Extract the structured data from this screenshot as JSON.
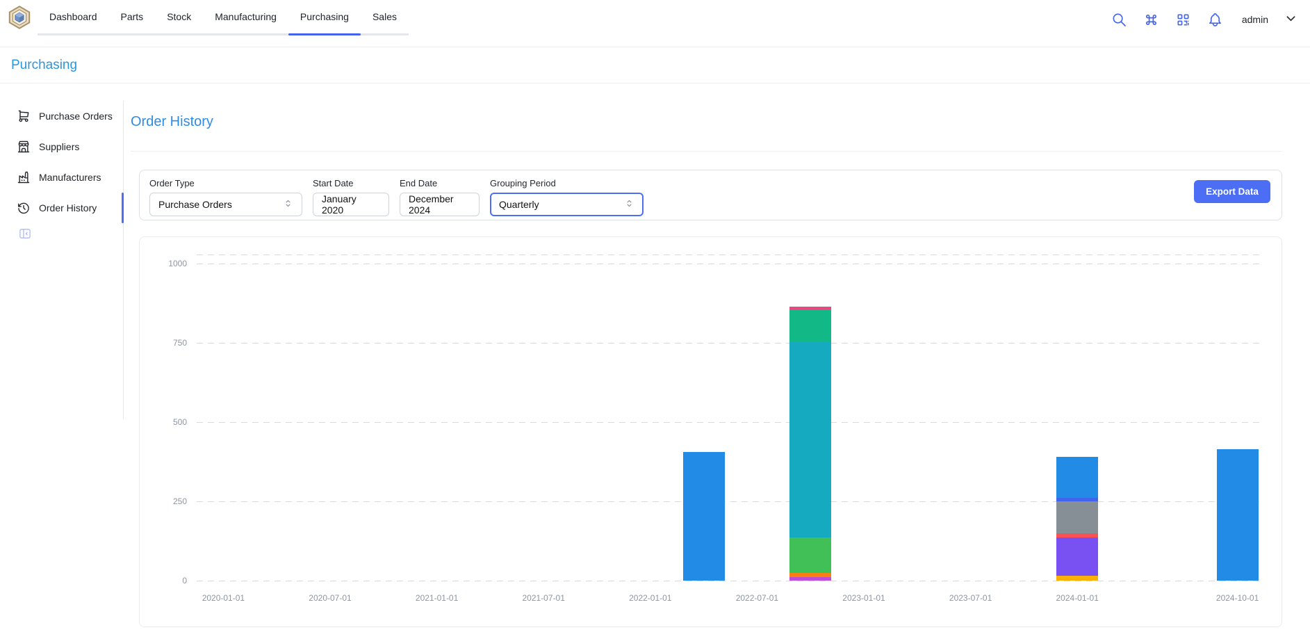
{
  "navbar": {
    "tabs": [
      {
        "label": "Dashboard",
        "active": false
      },
      {
        "label": "Parts",
        "active": false
      },
      {
        "label": "Stock",
        "active": false
      },
      {
        "label": "Manufacturing",
        "active": false
      },
      {
        "label": "Purchasing",
        "active": true
      },
      {
        "label": "Sales",
        "active": false
      }
    ],
    "user": "admin"
  },
  "page_header": {
    "title": "Purchasing"
  },
  "sidebar": {
    "items": [
      {
        "label": "Purchase Orders",
        "icon": "shopping-cart-icon",
        "active": false
      },
      {
        "label": "Suppliers",
        "icon": "building-store-icon",
        "active": false
      },
      {
        "label": "Manufacturers",
        "icon": "factory-icon",
        "active": false
      },
      {
        "label": "Order History",
        "icon": "history-icon",
        "active": true
      }
    ]
  },
  "main": {
    "title": "Order History",
    "filters": {
      "order_type": {
        "label": "Order Type",
        "value": "Purchase Orders"
      },
      "start_date": {
        "label": "Start Date",
        "value": "January 2020"
      },
      "end_date": {
        "label": "End Date",
        "value": "December 2024"
      },
      "grouping": {
        "label": "Grouping Period",
        "value": "Quarterly"
      }
    },
    "export_label": "Export Data"
  },
  "colors": {
    "accent_indigo": "#4263eb",
    "button_indigo": "#4c6ef5",
    "heading_blue": "#228be6",
    "axis_label": "#8d96a0"
  },
  "chart_data": {
    "type": "bar",
    "stacked": true,
    "grid": "dashed-horizontal",
    "legend": "none",
    "y_axis": {
      "ticks": [
        0,
        250,
        500,
        750,
        1000
      ],
      "range": [
        0,
        1030
      ]
    },
    "x_axis": {
      "total_slots": 20,
      "labels": [
        {
          "text": "2020-01-01",
          "slot": 0
        },
        {
          "text": "2020-07-01",
          "slot": 2
        },
        {
          "text": "2021-01-01",
          "slot": 4
        },
        {
          "text": "2021-07-01",
          "slot": 6
        },
        {
          "text": "2022-01-01",
          "slot": 8
        },
        {
          "text": "2022-07-01",
          "slot": 10
        },
        {
          "text": "2023-01-01",
          "slot": 12
        },
        {
          "text": "2023-07-01",
          "slot": 14
        },
        {
          "text": "2024-01-01",
          "slot": 16
        },
        {
          "text": "2024-10-01",
          "slot": 19
        }
      ]
    },
    "bars": [
      {
        "category": "2022-04-01",
        "slot": 9,
        "total": 405,
        "segments": [
          {
            "name": "blue",
            "color": "#228be6",
            "value": 405
          }
        ]
      },
      {
        "category": "2022-10-01",
        "slot": 11,
        "total": 865,
        "segments": [
          {
            "name": "grape",
            "color": "#be4bdb",
            "value": 10
          },
          {
            "name": "orange",
            "color": "#fd7e14",
            "value": 15
          },
          {
            "name": "green",
            "color": "#40c057",
            "value": 110
          },
          {
            "name": "cyan",
            "color": "#15aabf",
            "value": 620
          },
          {
            "name": "teal",
            "color": "#12b886",
            "value": 100
          },
          {
            "name": "pink",
            "color": "#e64980",
            "value": 10
          }
        ]
      },
      {
        "category": "2024-01-01",
        "slot": 16,
        "total": 390,
        "segments": [
          {
            "name": "yellow",
            "color": "#fab005",
            "value": 15
          },
          {
            "name": "violet",
            "color": "#7950f2",
            "value": 120
          },
          {
            "name": "red",
            "color": "#fa5252",
            "value": 15
          },
          {
            "name": "gray",
            "color": "#868e96",
            "value": 100
          },
          {
            "name": "indigo",
            "color": "#4263eb",
            "value": 10
          },
          {
            "name": "blue",
            "color": "#228be6",
            "value": 130
          }
        ]
      },
      {
        "category": "2024-10-01",
        "slot": 19,
        "total": 415,
        "segments": [
          {
            "name": "blue",
            "color": "#228be6",
            "value": 415
          }
        ]
      }
    ]
  }
}
